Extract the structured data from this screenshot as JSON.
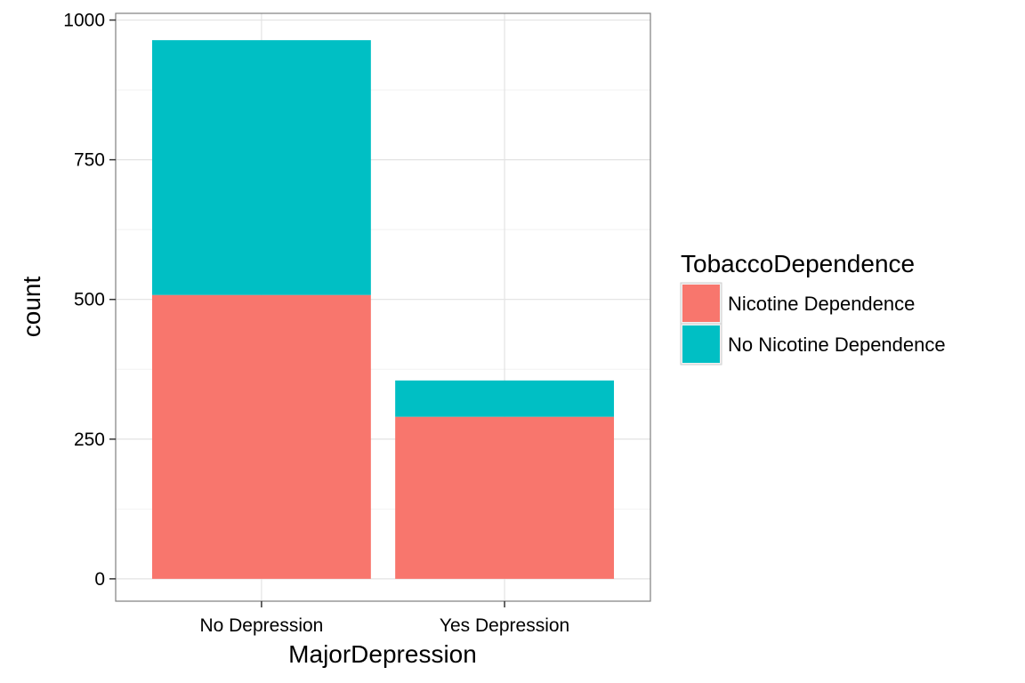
{
  "chart_data": {
    "type": "bar",
    "stacked": true,
    "xlabel": "MajorDepression",
    "ylabel": "count",
    "categories": [
      "No Depression",
      "Yes Depression"
    ],
    "series": [
      {
        "name": "Nicotine Dependence",
        "values": [
          508,
          290
        ],
        "color": "#F8766D"
      },
      {
        "name": "No Nicotine Dependence",
        "values": [
          456,
          65
        ],
        "color": "#00BFC4"
      }
    ],
    "ylim": [
      -40,
      1012
    ],
    "yticks": [
      0,
      250,
      500,
      750,
      1000
    ],
    "grid": true,
    "legend": {
      "title": "TobaccoDependence",
      "position": "right"
    }
  }
}
